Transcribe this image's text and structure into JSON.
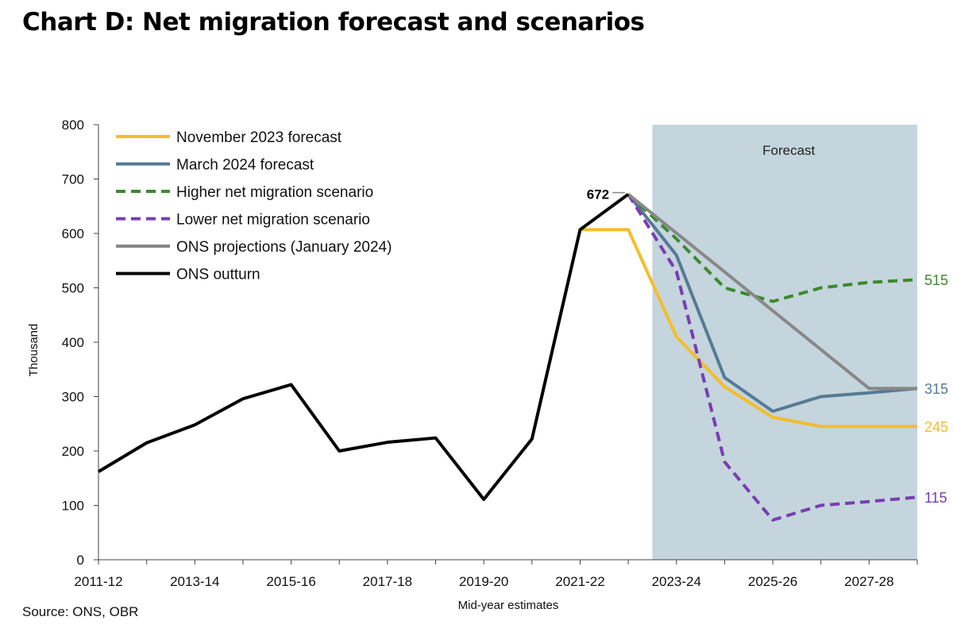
{
  "title": "Chart D: Net migration forecast and scenarios",
  "source": "Source: ONS, OBR",
  "chart_data": {
    "type": "line",
    "xlabel": "Mid-year estimates",
    "ylabel": "Thousand",
    "ylim": [
      0,
      800
    ],
    "yticks": [
      0,
      100,
      200,
      300,
      400,
      500,
      600,
      700,
      800
    ],
    "x": [
      "2011-12",
      "2012-13",
      "2013-14",
      "2014-15",
      "2015-16",
      "2016-17",
      "2017-18",
      "2018-19",
      "2019-20",
      "2020-21",
      "2021-22",
      "2022-23",
      "2023-24",
      "2024-25",
      "2025-26",
      "2026-27",
      "2027-28",
      "2028-29"
    ],
    "xtick_labels": [
      "2011-12",
      "2013-14",
      "2015-16",
      "2017-18",
      "2019-20",
      "2021-22",
      "2023-24",
      "2025-26",
      "2027-28"
    ],
    "forecast_region": {
      "label": "Forecast",
      "from": "2022-23",
      "to": "2028-29",
      "color": "#c5d5dd"
    },
    "legend_position": "top-left",
    "series": [
      {
        "name": "November 2023 forecast",
        "color": "#f5bd2b",
        "dash": false,
        "points": [
          [
            "2021-22",
            607
          ],
          [
            "2022-23",
            607
          ],
          [
            "2023-24",
            410
          ],
          [
            "2024-25",
            318
          ],
          [
            "2025-26",
            262
          ],
          [
            "2026-27",
            245
          ],
          [
            "2027-28",
            245
          ],
          [
            "2028-29",
            245
          ]
        ]
      },
      {
        "name": "March 2024 forecast",
        "color": "#557a95",
        "dash": false,
        "points": [
          [
            "2022-23",
            672
          ],
          [
            "2023-24",
            560
          ],
          [
            "2024-25",
            335
          ],
          [
            "2025-26",
            273
          ],
          [
            "2026-27",
            300
          ],
          [
            "2027-28",
            307
          ],
          [
            "2028-29",
            315
          ]
        ]
      },
      {
        "name": "Higher net migration scenario",
        "color": "#3c8a2e",
        "dash": true,
        "points": [
          [
            "2022-23",
            672
          ],
          [
            "2023-24",
            590
          ],
          [
            "2024-25",
            500
          ],
          [
            "2025-26",
            475
          ],
          [
            "2026-27",
            500
          ],
          [
            "2027-28",
            510
          ],
          [
            "2028-29",
            515
          ]
        ]
      },
      {
        "name": "Lower net migration scenario",
        "color": "#7a3db0",
        "dash": true,
        "points": [
          [
            "2022-23",
            672
          ],
          [
            "2023-24",
            530
          ],
          [
            "2024-25",
            180
          ],
          [
            "2025-26",
            73
          ],
          [
            "2026-27",
            100
          ],
          [
            "2027-28",
            107
          ],
          [
            "2028-29",
            115
          ]
        ]
      },
      {
        "name": "ONS projections (January 2024)",
        "color": "#888888",
        "dash": false,
        "points": [
          [
            "2022-23",
            672
          ],
          [
            "2027-28",
            315
          ],
          [
            "2028-29",
            315
          ]
        ]
      },
      {
        "name": "ONS outturn",
        "color": "#000000",
        "dash": false,
        "points": [
          [
            "2011-12",
            162
          ],
          [
            "2012-13",
            215
          ],
          [
            "2013-14",
            248
          ],
          [
            "2014-15",
            296
          ],
          [
            "2015-16",
            322
          ],
          [
            "2016-17",
            200
          ],
          [
            "2017-18",
            216
          ],
          [
            "2018-19",
            224
          ],
          [
            "2019-20",
            111
          ],
          [
            "2020-21",
            222
          ],
          [
            "2021-22",
            607
          ],
          [
            "2022-23",
            672
          ]
        ]
      }
    ],
    "annotations": [
      {
        "text": "672",
        "x": "2022-23",
        "y": 672,
        "color": "#000000"
      },
      {
        "text": "515",
        "x": "2028-29",
        "y": 515,
        "color": "#3c8a2e"
      },
      {
        "text": "315",
        "x": "2028-29",
        "y": 315,
        "color": "#557a95"
      },
      {
        "text": "245",
        "x": "2028-29",
        "y": 245,
        "color": "#f5bd2b"
      },
      {
        "text": "115",
        "x": "2028-29",
        "y": 115,
        "color": "#7a3db0"
      }
    ]
  }
}
